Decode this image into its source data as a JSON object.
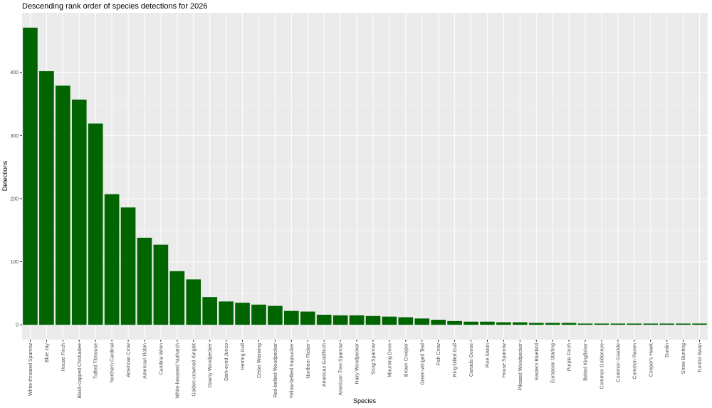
{
  "chart_data": {
    "type": "bar",
    "title": "Descending rank order of species detections for 2026",
    "x_label": "Species",
    "y_label": "Detections",
    "categories": [
      "White-throated Sparrow",
      "Blue Jay",
      "House Finch",
      "Black-capped Chickadee",
      "Tufted Titmouse",
      "Northern Cardinal",
      "American Crow",
      "American Robin",
      "Carolina Wren",
      "White-breasted Nuthatch",
      "Golden-crowned Kinglet",
      "Downy Woodpecker",
      "Dark-eyed Junco",
      "Herring Gull",
      "Cedar Waxwing",
      "Red-bellied Woodpecker",
      "Yellow-bellied Sapsucker",
      "Northern Flicker",
      "American Goldfinch",
      "American Tree Sparrow",
      "Hairy Woodpecker",
      "Song Sparrow",
      "Mourning Dove",
      "Brown Creeper",
      "Green-winged Teal",
      "Fish Crow",
      "Ring-billed Gull",
      "Canada Goose",
      "Pine Siskin",
      "House Sparrow",
      "Pileated Woodpecker",
      "Eastern Bluebird",
      "European Starling",
      "Purple Finch",
      "Belted Kingfisher",
      "Common Goldeneye",
      "Common Grackle",
      "Common Raven",
      "Cooper's Hawk",
      "Dunlin",
      "Snow Bunting",
      "Tundra Swan"
    ],
    "values": [
      471,
      402,
      379,
      357,
      319,
      207,
      186,
      138,
      127,
      85,
      72,
      44,
      37,
      35,
      32,
      30,
      22,
      21,
      16,
      15,
      15,
      14,
      13,
      12,
      10,
      8,
      6,
      5,
      5,
      4,
      4,
      3,
      3,
      3,
      2,
      2,
      2,
      2,
      2,
      2,
      2,
      2
    ],
    "color": "#006400",
    "ylim": [
      -23.5,
      494.5
    ],
    "yticks": [
      0,
      100,
      200,
      300,
      400
    ],
    "grid": true
  }
}
